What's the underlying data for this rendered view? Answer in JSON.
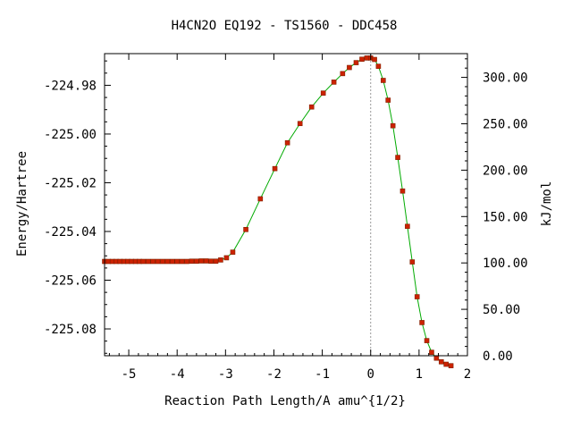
{
  "chart_data": {
    "type": "line",
    "title": "H4CN2O   EQ192 - TS1560 - DDC458",
    "xlabel": "Reaction Path Length/A amu^{1/2}",
    "ylabel": "Energy/Hartree",
    "y2label": "kJ/mol",
    "xlim": [
      -5.5,
      2.0
    ],
    "ylim": [
      -225.091,
      -224.967
    ],
    "y2lim": [
      0,
      325.6
    ],
    "x_ticks": [
      -5,
      -4,
      -3,
      -2,
      -1,
      0,
      1,
      2
    ],
    "x_tick_labels": [
      "-5",
      "-4",
      "-3",
      "-2",
      "-1",
      "0",
      "1",
      "2"
    ],
    "y_ticks": [
      -224.98,
      -225.0,
      -225.02,
      -225.04,
      -225.06,
      -225.08
    ],
    "y_tick_labels": [
      "-224.98",
      "-225.00",
      "-225.02",
      "-225.04",
      "-225.06",
      "-225.08"
    ],
    "y2_ticks": [
      0,
      50,
      100,
      150,
      200,
      250,
      300
    ],
    "y2_tick_labels": [
      "0.00",
      "50.00",
      "100.00",
      "150.00",
      "200.00",
      "250.00",
      "300.00"
    ],
    "ts_line_x": 0,
    "grid": false,
    "series": [
      {
        "line_color": "#00aa00",
        "marker_color": "#cc2200",
        "x": [
          -5.5,
          -5.42,
          -5.34,
          -5.26,
          -5.18,
          -5.1,
          -5.02,
          -4.94,
          -4.86,
          -4.78,
          -4.7,
          -4.6,
          -4.5,
          -4.4,
          -4.3,
          -4.2,
          -4.1,
          -4.0,
          -3.9,
          -3.8,
          -3.7,
          -3.6,
          -3.5,
          -3.4,
          -3.3,
          -3.2,
          -3.1,
          -2.98,
          -2.85,
          -2.58,
          -2.28,
          -1.98,
          -1.72,
          -1.46,
          -1.22,
          -0.98,
          -0.76,
          -0.58,
          -0.44,
          -0.3,
          -0.18,
          -0.08,
          0.0,
          0.08,
          0.16,
          0.26,
          0.36,
          0.46,
          0.56,
          0.66,
          0.76,
          0.86,
          0.96,
          1.06,
          1.16,
          1.26,
          1.36,
          1.46,
          1.56,
          1.66
        ],
        "y": [
          -225.0523,
          -225.0523,
          -225.0523,
          -225.0523,
          -225.0523,
          -225.0523,
          -225.0523,
          -225.0523,
          -225.0523,
          -225.0523,
          -225.0523,
          -225.0523,
          -225.0523,
          -225.0523,
          -225.0523,
          -225.0523,
          -225.0523,
          -225.0523,
          -225.0523,
          -225.0523,
          -225.0522,
          -225.0522,
          -225.0521,
          -225.0521,
          -225.0522,
          -225.0522,
          -225.0517,
          -225.0508,
          -225.0485,
          -225.0392,
          -225.0266,
          -225.0142,
          -225.0036,
          -224.9957,
          -224.9889,
          -224.9832,
          -224.9787,
          -224.9752,
          -224.9727,
          -224.9707,
          -224.9693,
          -224.9688,
          -224.9688,
          -224.9694,
          -224.9722,
          -224.978,
          -224.9861,
          -224.9966,
          -225.0096,
          -225.0234,
          -225.0379,
          -225.0525,
          -225.0668,
          -225.0774,
          -225.0848,
          -225.0896,
          -225.092,
          -225.0935,
          -225.0945,
          -225.0951
        ]
      }
    ]
  }
}
